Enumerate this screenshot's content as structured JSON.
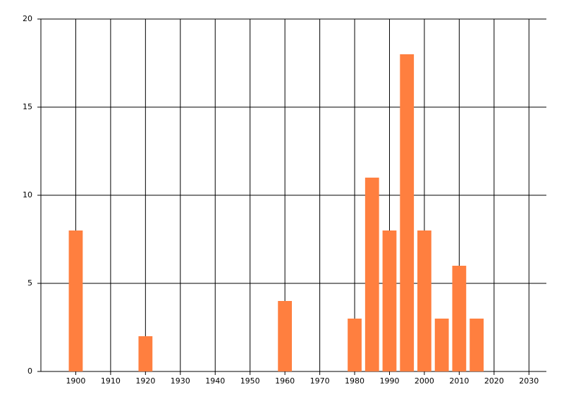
{
  "chart_data": {
    "type": "bar",
    "x": [
      1900,
      1920,
      1960,
      1980,
      1985,
      1990,
      1995,
      2000,
      2005,
      2010,
      2015
    ],
    "values": [
      8,
      2,
      4,
      3,
      11,
      8,
      18,
      8,
      3,
      6,
      3
    ],
    "bar_width": 4,
    "color": "#ff7f3f",
    "xlim": [
      1890,
      2035
    ],
    "xticks": [
      1900,
      1910,
      1920,
      1930,
      1940,
      1950,
      1960,
      1970,
      1980,
      1990,
      2000,
      2010,
      2020,
      2030
    ],
    "ylim": [
      0,
      20
    ],
    "yticks": [
      0,
      5,
      10,
      15,
      20
    ],
    "grid": true
  }
}
